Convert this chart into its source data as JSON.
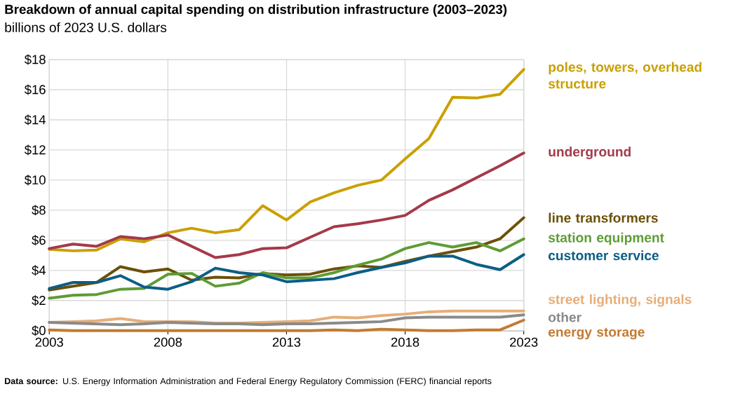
{
  "chart_data": {
    "type": "line",
    "title": "Breakdown of annual capital spending on distribution infrastructure (2003–2023)",
    "subtitle": "billions of 2023 U.S. dollars",
    "x": [
      2003,
      2004,
      2005,
      2006,
      2007,
      2008,
      2009,
      2010,
      2011,
      2012,
      2013,
      2014,
      2015,
      2016,
      2017,
      2018,
      2019,
      2020,
      2021,
      2022,
      2023
    ],
    "xlim": [
      2003,
      2023
    ],
    "xticks": [
      2003,
      2008,
      2013,
      2018,
      2023
    ],
    "ylim": [
      0,
      18
    ],
    "yticks": [
      {
        "value": 0,
        "label": "$0"
      },
      {
        "value": 2,
        "label": "$2"
      },
      {
        "value": 4,
        "label": "$4"
      },
      {
        "value": 6,
        "label": "$6"
      },
      {
        "value": 8,
        "label": "$8"
      },
      {
        "value": 10,
        "label": "$10"
      },
      {
        "value": 12,
        "label": "$12"
      },
      {
        "value": 14,
        "label": "$14"
      },
      {
        "value": 16,
        "label": "$16"
      },
      {
        "value": 18,
        "label": "$18"
      }
    ],
    "grid": true,
    "legend": false,
    "marker": "none",
    "line_style": "solid",
    "series": [
      {
        "name": "poles, towers, overhead structure",
        "color": "#c9a000",
        "values": [
          5.4,
          5.3,
          5.35,
          6.1,
          5.9,
          6.5,
          6.8,
          6.5,
          6.7,
          8.3,
          7.35,
          8.55,
          9.15,
          9.65,
          10.0,
          11.4,
          12.75,
          15.5,
          15.45,
          15.7,
          17.35
        ]
      },
      {
        "name": "underground",
        "color": "#a33a4a",
        "values": [
          5.45,
          5.75,
          5.6,
          6.25,
          6.1,
          6.35,
          5.6,
          4.85,
          5.05,
          5.45,
          5.5,
          6.2,
          6.9,
          7.1,
          7.35,
          7.65,
          8.65,
          9.35,
          10.15,
          10.95,
          11.8
        ]
      },
      {
        "name": "line transformers",
        "color": "#6b5008",
        "values": [
          2.7,
          2.95,
          3.2,
          4.25,
          3.9,
          4.1,
          3.35,
          3.55,
          3.5,
          3.8,
          3.7,
          3.75,
          4.1,
          4.3,
          4.2,
          4.6,
          4.95,
          5.25,
          5.55,
          6.1,
          7.5
        ]
      },
      {
        "name": "station equipment",
        "color": "#5e9c34",
        "values": [
          2.15,
          2.35,
          2.4,
          2.75,
          2.8,
          3.75,
          3.8,
          2.95,
          3.15,
          3.85,
          3.5,
          3.5,
          3.85,
          4.35,
          4.75,
          5.45,
          5.85,
          5.55,
          5.85,
          5.3,
          6.1
        ]
      },
      {
        "name": "customer service",
        "color": "#0b5e86",
        "values": [
          2.8,
          3.2,
          3.2,
          3.65,
          2.9,
          2.75,
          3.25,
          4.15,
          3.85,
          3.7,
          3.25,
          3.35,
          3.45,
          3.85,
          4.2,
          4.5,
          4.95,
          4.95,
          4.4,
          4.05,
          5.05
        ]
      },
      {
        "name": "street lighting, signals",
        "color": "#e6ae78",
        "values": [
          0.55,
          0.6,
          0.65,
          0.8,
          0.6,
          0.6,
          0.6,
          0.5,
          0.5,
          0.55,
          0.6,
          0.65,
          0.9,
          0.85,
          1.0,
          1.1,
          1.25,
          1.3,
          1.3,
          1.3,
          1.3
        ]
      },
      {
        "name": "other",
        "color": "#8a8a8a",
        "values": [
          0.55,
          0.5,
          0.45,
          0.4,
          0.45,
          0.55,
          0.5,
          0.45,
          0.45,
          0.4,
          0.45,
          0.45,
          0.5,
          0.55,
          0.6,
          0.85,
          0.9,
          0.9,
          0.9,
          0.9,
          1.05
        ]
      },
      {
        "name": "energy storage",
        "color": "#c47a30",
        "values": [
          0.05,
          0.0,
          0.0,
          0.0,
          0.0,
          0.0,
          0.0,
          0.0,
          0.0,
          0.0,
          0.0,
          0.0,
          0.05,
          0.0,
          0.1,
          0.05,
          0.0,
          0.0,
          0.05,
          0.05,
          0.7
        ]
      }
    ],
    "annotations": [
      "**Data source:** U.S. Energy Information Administration and Federal Energy Regulatory Commission (FERC) financial reports"
    ]
  }
}
